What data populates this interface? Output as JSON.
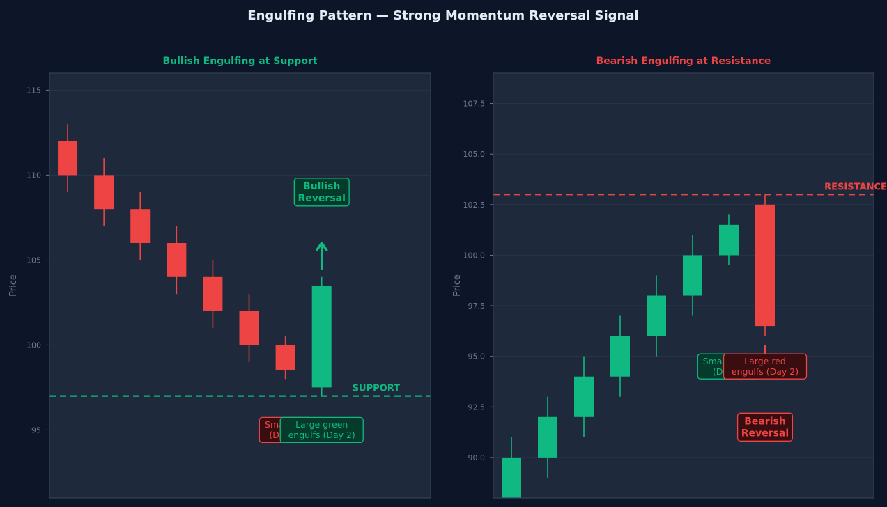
{
  "page": {
    "title": "Engulfing Pattern — Strong Momentum Reversal Signal"
  },
  "colors": {
    "background": "#0d1629",
    "panel": "#1e293b",
    "grid": "#283548",
    "bull": "#10b981",
    "bear": "#ef4444",
    "tick": "#6b7b93"
  },
  "chart_data": [
    {
      "type": "candlestick",
      "title": "Bullish Engulfing at Support",
      "ylabel": "Price",
      "ylim": [
        91,
        116
      ],
      "yticks": [
        95,
        100,
        105,
        110,
        115
      ],
      "yticklabels": [
        "95",
        "100",
        "105",
        "110",
        "115"
      ],
      "xlim": [
        -0.5,
        10
      ],
      "grid": true,
      "candles": [
        {
          "x": 0,
          "open": 112,
          "high": 113,
          "low": 109,
          "close": 110
        },
        {
          "x": 1,
          "open": 110,
          "high": 111,
          "low": 107,
          "close": 108
        },
        {
          "x": 2,
          "open": 108,
          "high": 109,
          "low": 105,
          "close": 106
        },
        {
          "x": 3,
          "open": 106,
          "high": 107,
          "low": 103,
          "close": 104
        },
        {
          "x": 4,
          "open": 104,
          "high": 105,
          "low": 101,
          "close": 102
        },
        {
          "x": 5,
          "open": 102,
          "high": 103,
          "low": 99,
          "close": 100
        },
        {
          "x": 6,
          "open": 100,
          "high": 100.5,
          "low": 98,
          "close": 98.5
        },
        {
          "x": 7,
          "open": 97.5,
          "high": 104,
          "low": 97,
          "close": 103.5
        }
      ],
      "level": {
        "value": 97,
        "label": "SUPPORT",
        "color": "#10b981",
        "label_x": 8.5
      },
      "arrow": {
        "x": 7,
        "from": 104.5,
        "to": 106,
        "color": "#10b981"
      },
      "reversal_label": {
        "text": "Bullish\nReversal",
        "x": 7,
        "y": 109,
        "color": "#10b981"
      },
      "annotations": [
        {
          "text": "Small red\n(Day 1)",
          "x": 6,
          "y": 95,
          "color": "#ef4444"
        },
        {
          "text": "Large green\nengulfs (Day 2)",
          "x": 7,
          "y": 95,
          "color": "#10b981"
        }
      ]
    },
    {
      "type": "candlestick",
      "title": "Bearish Engulfing at Resistance",
      "ylabel": "Price",
      "ylim": [
        88,
        109
      ],
      "yticks": [
        90,
        92.5,
        95,
        97.5,
        100,
        102.5,
        105,
        107.5
      ],
      "yticklabels": [
        "90.0",
        "92.5",
        "95.0",
        "97.5",
        "100.0",
        "102.5",
        "105.0",
        "107.5"
      ],
      "xlim": [
        -0.5,
        10
      ],
      "grid": true,
      "candles": [
        {
          "x": 0,
          "open": 88,
          "high": 91,
          "low": 87,
          "close": 90
        },
        {
          "x": 1,
          "open": 90,
          "high": 93,
          "low": 89,
          "close": 92
        },
        {
          "x": 2,
          "open": 92,
          "high": 95,
          "low": 91,
          "close": 94
        },
        {
          "x": 3,
          "open": 94,
          "high": 97,
          "low": 93,
          "close": 96
        },
        {
          "x": 4,
          "open": 96,
          "high": 99,
          "low": 95,
          "close": 98
        },
        {
          "x": 5,
          "open": 98,
          "high": 101,
          "low": 97,
          "close": 100
        },
        {
          "x": 6,
          "open": 100,
          "high": 102,
          "low": 99.5,
          "close": 101.5
        },
        {
          "x": 7,
          "open": 102.5,
          "high": 103,
          "low": 96,
          "close": 96.5
        }
      ],
      "level": {
        "value": 103,
        "label": "RESISTANCE",
        "color": "#ef4444",
        "label_x": 9.5
      },
      "arrow": {
        "x": 7,
        "from": 95.5,
        "to": 94,
        "color": "#ef4444"
      },
      "reversal_label": {
        "text": "Bearish\nReversal",
        "x": 7,
        "y": 91.5,
        "color": "#ef4444"
      },
      "annotations": [
        {
          "text": "Small green\n(Day 1)",
          "x": 6,
          "y": 94.5,
          "color": "#10b981"
        },
        {
          "text": "Large red\nengulfs (Day 2)",
          "x": 7,
          "y": 94.5,
          "color": "#ef4444"
        }
      ]
    }
  ]
}
